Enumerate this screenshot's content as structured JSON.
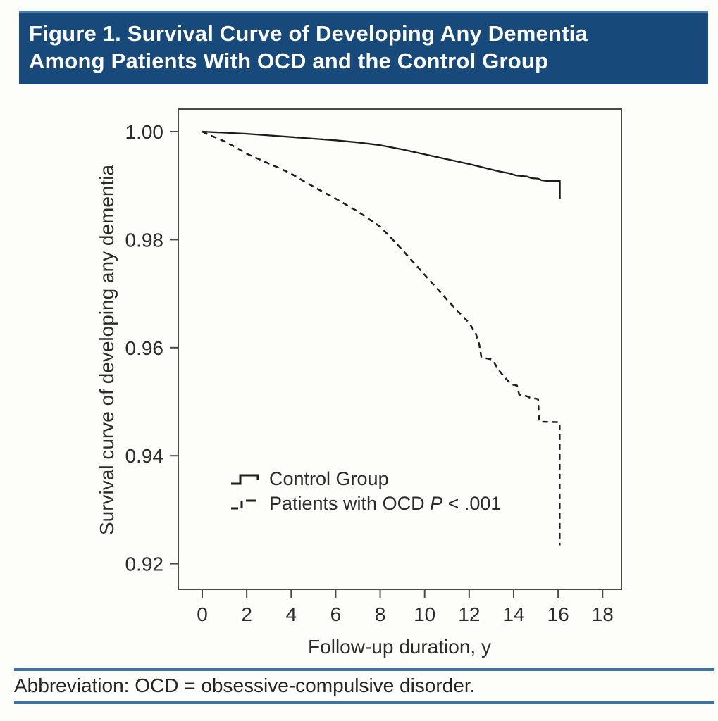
{
  "figure": {
    "title_line1": "Figure 1. Survival Curve of Developing Any Dementia",
    "title_line2": "Among Patients With OCD and the Control Group",
    "footer": "Abbreviation: OCD = obsessive-compulsive disorder.",
    "colors": {
      "header_bg": "#17497a",
      "header_top_edge": "#4d7ba6",
      "footer_rule_blue": "#3d72a3",
      "curve_color": "#1c1c1c",
      "axis_color": "#4a4a4a",
      "text_color": "#2b2b2b"
    }
  },
  "chart_data": {
    "type": "line",
    "subtype": "kaplan-meier-survival",
    "title": "",
    "xlabel": "Follow-up duration, y",
    "ylabel": "Survival curve of developing any dementia",
    "xlim": [
      0,
      18
    ],
    "ylim": [
      0.915,
      1.005
    ],
    "grid": false,
    "legend_position": "inside-lower-left",
    "x_ticks": {
      "values": [
        0,
        2,
        4,
        6,
        8,
        10,
        12,
        14,
        16,
        18
      ],
      "labels": [
        "0",
        "2",
        "4",
        "6",
        "8",
        "10",
        "12",
        "14",
        "16",
        "18"
      ]
    },
    "y_ticks": {
      "values": [
        1.0,
        0.98,
        0.96,
        0.94,
        0.92
      ],
      "labels": [
        "1.00",
        "0.98",
        "0.96",
        "0.94",
        "0.92"
      ]
    },
    "series": [
      {
        "name": "Control Group",
        "style": "solid",
        "points": [
          [
            0,
            1.0
          ],
          [
            0.5,
            0.9999
          ],
          [
            1,
            0.9998
          ],
          [
            2,
            0.9996
          ],
          [
            3,
            0.9993
          ],
          [
            4,
            0.999
          ],
          [
            5,
            0.9987
          ],
          [
            6,
            0.9984
          ],
          [
            7,
            0.998
          ],
          [
            8,
            0.9975
          ],
          [
            9,
            0.9967
          ],
          [
            10,
            0.9958
          ],
          [
            11,
            0.9949
          ],
          [
            12,
            0.994
          ],
          [
            12.6,
            0.9934
          ],
          [
            13.0,
            0.993
          ],
          [
            13.4,
            0.9926
          ],
          [
            13.8,
            0.9923
          ],
          [
            14.1,
            0.9919
          ],
          [
            14.6,
            0.9917
          ],
          [
            14.8,
            0.9914
          ],
          [
            15.1,
            0.9913
          ],
          [
            15.25,
            0.991
          ],
          [
            15.45,
            0.9909
          ],
          [
            16.08,
            0.9909
          ],
          [
            16.08,
            0.9875
          ]
        ]
      },
      {
        "name": "Patients with OCD",
        "p_italic": "P",
        "p_rest": " < .001",
        "style": "dashed",
        "points": [
          [
            0,
            1.0
          ],
          [
            0.3,
            0.9994
          ],
          [
            0.6,
            0.9989
          ],
          [
            1,
            0.9982
          ],
          [
            1.5,
            0.9971
          ],
          [
            2,
            0.9959
          ],
          [
            2.5,
            0.995
          ],
          [
            3,
            0.9941
          ],
          [
            3.5,
            0.9932
          ],
          [
            4,
            0.9922
          ],
          [
            4.5,
            0.991
          ],
          [
            5,
            0.9898
          ],
          [
            5.5,
            0.9887
          ],
          [
            6,
            0.9876
          ],
          [
            6.5,
            0.9864
          ],
          [
            7,
            0.9852
          ],
          [
            7.5,
            0.9838
          ],
          [
            8,
            0.9824
          ],
          [
            8.5,
            0.9803
          ],
          [
            9,
            0.9781
          ],
          [
            9.5,
            0.9758
          ],
          [
            10,
            0.9735
          ],
          [
            10.5,
            0.9712
          ],
          [
            11,
            0.9689
          ],
          [
            11.5,
            0.9667
          ],
          [
            12,
            0.9646
          ],
          [
            12.3,
            0.9626
          ],
          [
            12.45,
            0.9607
          ],
          [
            12.55,
            0.9582
          ],
          [
            13.05,
            0.9578
          ],
          [
            13.3,
            0.956
          ],
          [
            13.6,
            0.9545
          ],
          [
            13.9,
            0.9532
          ],
          [
            14.15,
            0.953
          ],
          [
            14.25,
            0.9513
          ],
          [
            14.6,
            0.951
          ],
          [
            14.75,
            0.9507
          ],
          [
            15.1,
            0.9505
          ],
          [
            15.15,
            0.9463
          ],
          [
            16.07,
            0.9462
          ],
          [
            16.07,
            0.9234
          ]
        ]
      }
    ]
  }
}
